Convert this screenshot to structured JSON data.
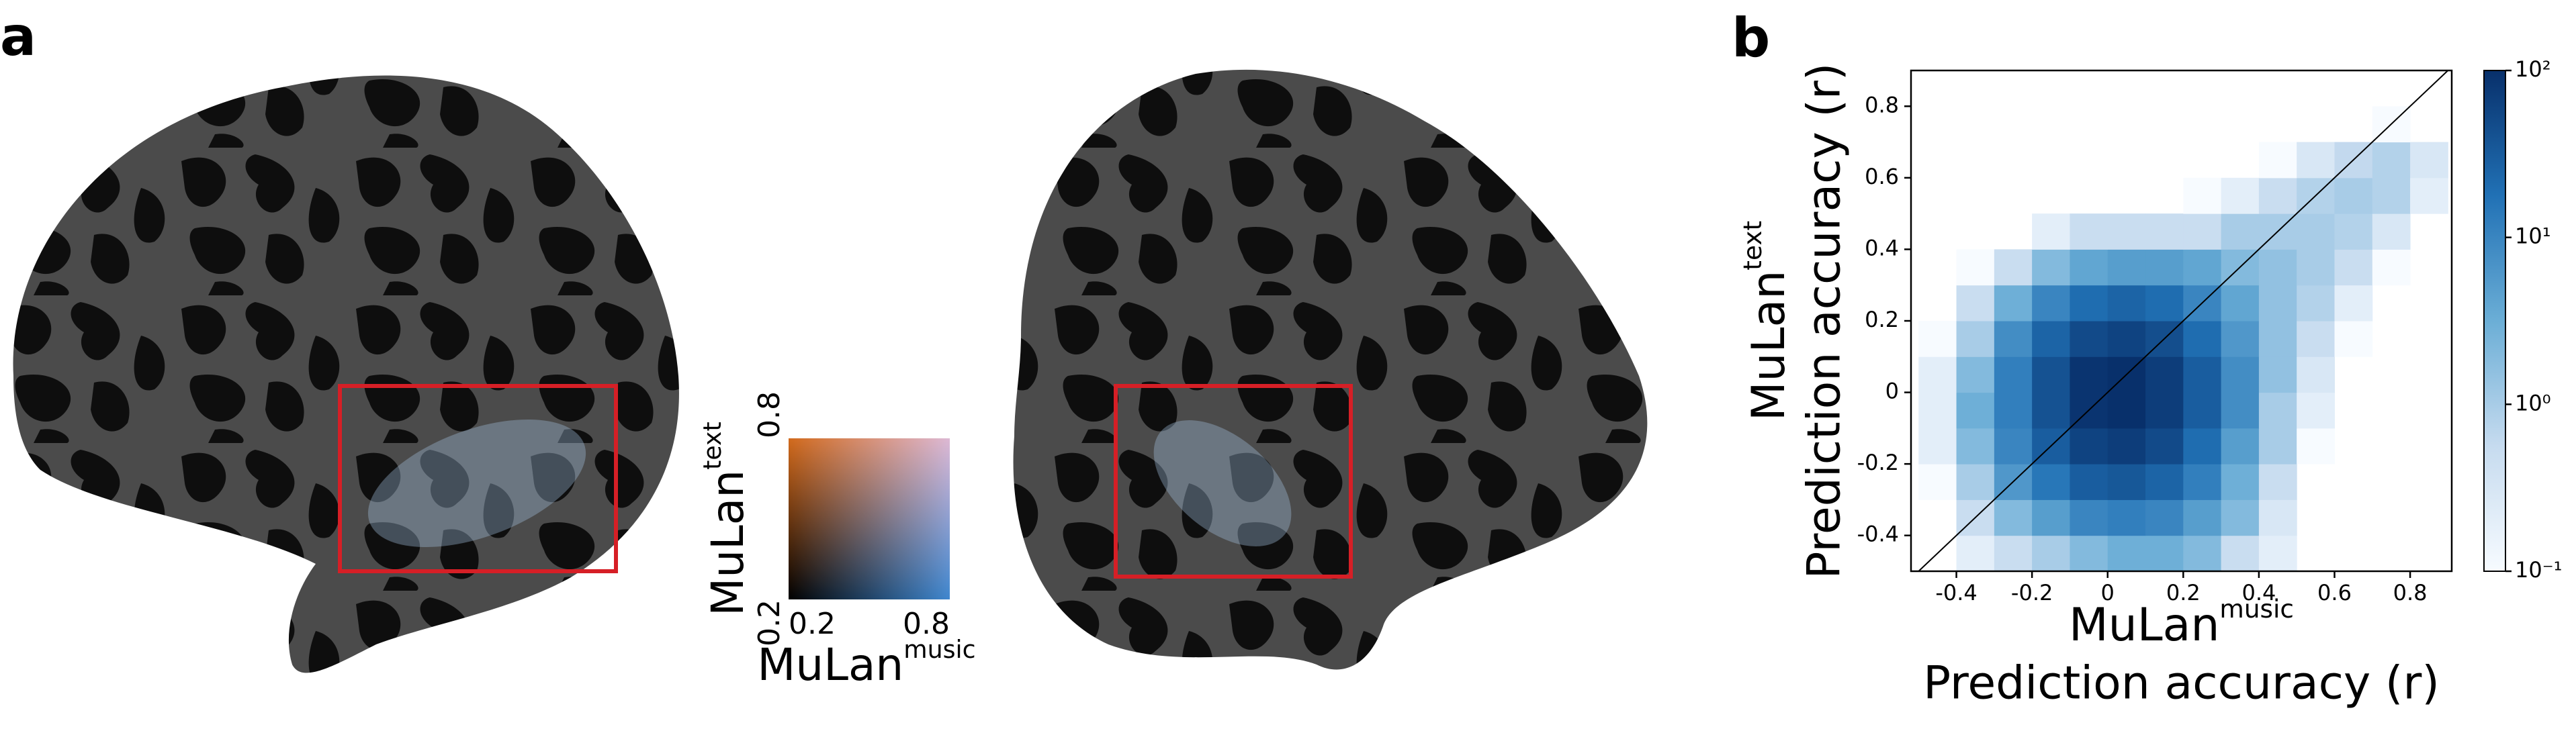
{
  "panel_a": {
    "label": "a",
    "legend": {
      "xticks": [
        0.2,
        0.8
      ],
      "yticks": [
        0.2,
        0.8
      ],
      "xlabel": {
        "name": "MuLan",
        "sup": "music"
      },
      "ylabel": {
        "name": "MuLan",
        "sup": "text"
      }
    }
  },
  "chart_data": {
    "type": "hist2d",
    "panel_label": "b",
    "xlabel": {
      "name": "MuLan",
      "sup": "music",
      "line2": "Prediction accuracy (r)"
    },
    "ylabel": {
      "name": "MuLan",
      "sup": "text",
      "line2": "Prediction accuracy (r)"
    },
    "xlim": [
      -0.52,
      0.91
    ],
    "ylim": [
      -0.5,
      0.9
    ],
    "xticks": [
      -0.4,
      -0.2,
      0.0,
      0.2,
      0.4,
      0.6,
      0.8
    ],
    "yticks": [
      -0.4,
      -0.2,
      0.0,
      0.2,
      0.4,
      0.6,
      0.8
    ],
    "xbins": [
      -0.5,
      -0.4,
      -0.3,
      -0.2,
      -0.1,
      0.0,
      0.1,
      0.2,
      0.3,
      0.4,
      0.5,
      0.6,
      0.7,
      0.8,
      0.9
    ],
    "ybins": [
      -0.5,
      -0.4,
      -0.3,
      -0.2,
      -0.1,
      0.0,
      0.1,
      0.2,
      0.3,
      0.4,
      0.5,
      0.6,
      0.7,
      0.8,
      0.9
    ],
    "counts": [
      [
        0,
        0.2,
        0.5,
        1,
        2,
        3,
        3,
        2,
        0.5,
        0.2,
        0,
        0,
        0,
        0
      ],
      [
        0,
        0.5,
        2,
        5,
        10,
        12,
        10,
        5,
        2,
        0.3,
        0,
        0,
        0,
        0
      ],
      [
        0.1,
        1,
        6,
        15,
        30,
        35,
        25,
        12,
        3,
        0.5,
        0,
        0,
        0,
        0
      ],
      [
        0.2,
        2,
        10,
        30,
        60,
        70,
        50,
        20,
        5,
        1,
        0.1,
        0,
        0,
        0
      ],
      [
        0.2,
        3,
        12,
        40,
        90,
        100,
        70,
        30,
        8,
        1,
        0.2,
        0,
        0,
        0
      ],
      [
        0.2,
        2,
        12,
        40,
        90,
        100,
        70,
        30,
        8,
        1.5,
        0.3,
        0,
        0,
        0
      ],
      [
        0.1,
        1,
        8,
        25,
        50,
        60,
        45,
        20,
        6,
        1.5,
        0.5,
        0.1,
        0,
        0
      ],
      [
        0,
        0.5,
        3,
        10,
        20,
        25,
        20,
        10,
        4,
        1.5,
        0.8,
        0.2,
        0,
        0
      ],
      [
        0,
        0.1,
        0.5,
        2,
        4,
        5,
        5,
        4,
        2,
        1.5,
        1,
        0.5,
        0.1,
        0
      ],
      [
        0,
        0,
        0,
        0.2,
        0.5,
        0.5,
        0.5,
        0.5,
        1,
        1,
        1,
        0.8,
        0.3,
        0
      ],
      [
        0,
        0,
        0,
        0,
        0,
        0,
        0,
        0.1,
        0.2,
        0.5,
        0.8,
        1,
        0.8,
        0.2
      ],
      [
        0,
        0,
        0,
        0,
        0,
        0,
        0,
        0,
        0,
        0.1,
        0.3,
        0.6,
        0.8,
        0.3
      ],
      [
        0,
        0,
        0,
        0,
        0,
        0,
        0,
        0,
        0,
        0,
        0,
        0,
        0.1,
        0
      ],
      [
        0,
        0,
        0,
        0,
        0,
        0,
        0,
        0,
        0,
        0,
        0,
        0,
        0,
        0
      ]
    ],
    "clim": [
      0.1,
      100
    ],
    "color_scale": "log",
    "colormap": [
      "#f7fbff",
      "#c6dbef",
      "#6baed6",
      "#2171b5",
      "#08306b"
    ],
    "cticks": [
      {
        "value": 0.1,
        "label": "10⁻¹"
      },
      {
        "value": 1,
        "label": "10⁰"
      },
      {
        "value": 10,
        "label": "10¹"
      },
      {
        "value": 100,
        "label": "10²"
      }
    ],
    "diagonal": true
  }
}
